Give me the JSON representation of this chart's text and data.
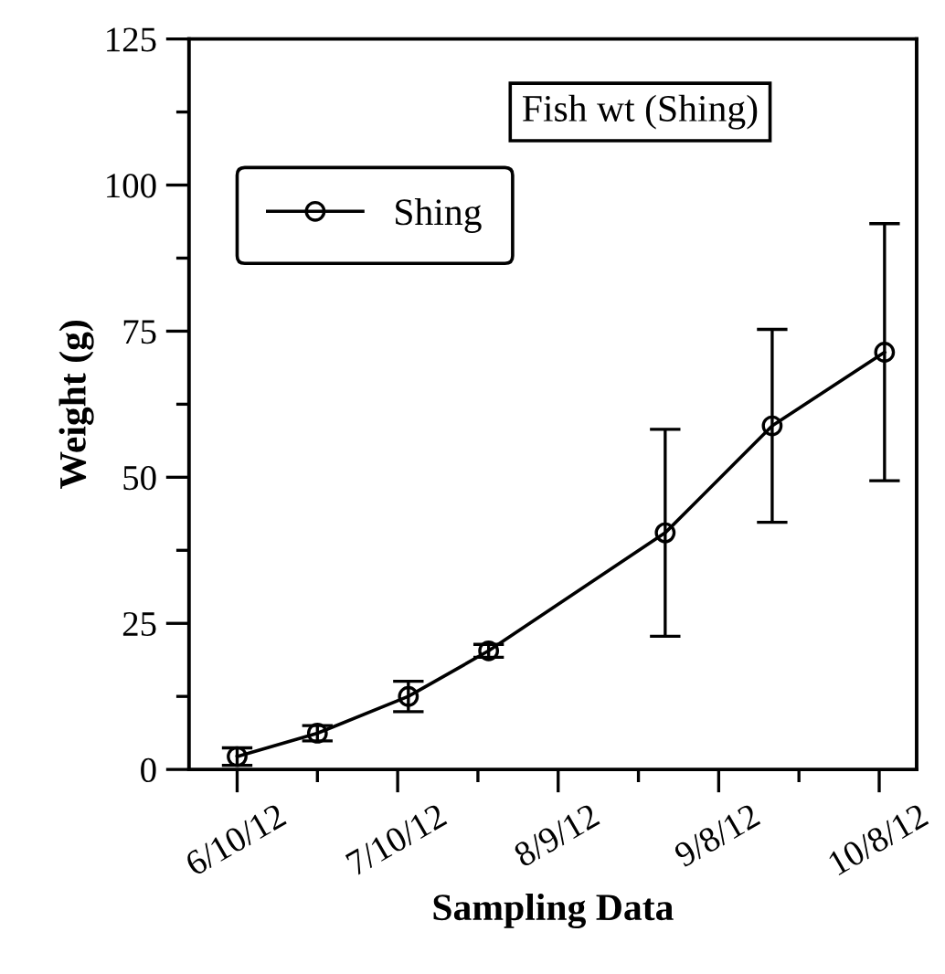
{
  "chart_data": {
    "type": "line",
    "xlabel": "Sampling Data",
    "ylabel": "Weight (g)",
    "annotations": [
      "Fish wt (Shing)"
    ],
    "x": [
      "2012-06-10",
      "2012-06-25",
      "2012-07-12",
      "2012-07-27",
      "2012-08-29",
      "2012-09-18",
      "2012-10-09"
    ],
    "series": [
      {
        "name": "Shing",
        "color": "#000000",
        "values": [
          2.2,
          6.2,
          12.5,
          20.3,
          40.5,
          58.8,
          71.4
        ],
        "errors": [
          1.5,
          1.3,
          2.6,
          1.1,
          17.7,
          16.5,
          22
        ]
      }
    ],
    "xlim": [
      "2012-06-01",
      "2012-10-15"
    ],
    "xticks": [
      {
        "value": "2012-06-10",
        "label": "6/10/12"
      },
      {
        "value": "2012-07-10",
        "label": "7/10/12"
      },
      {
        "value": "2012-08-09",
        "label": "8/9/12"
      },
      {
        "value": "2012-09-08",
        "label": "9/8/12"
      },
      {
        "value": "2012-10-08",
        "label": "10/8/12"
      }
    ],
    "ylim": [
      0,
      125
    ],
    "yticks": [
      0,
      25,
      50,
      75,
      100,
      125
    ],
    "grid": false,
    "legend": "top left",
    "marker": "circle",
    "line_style": "solid"
  }
}
